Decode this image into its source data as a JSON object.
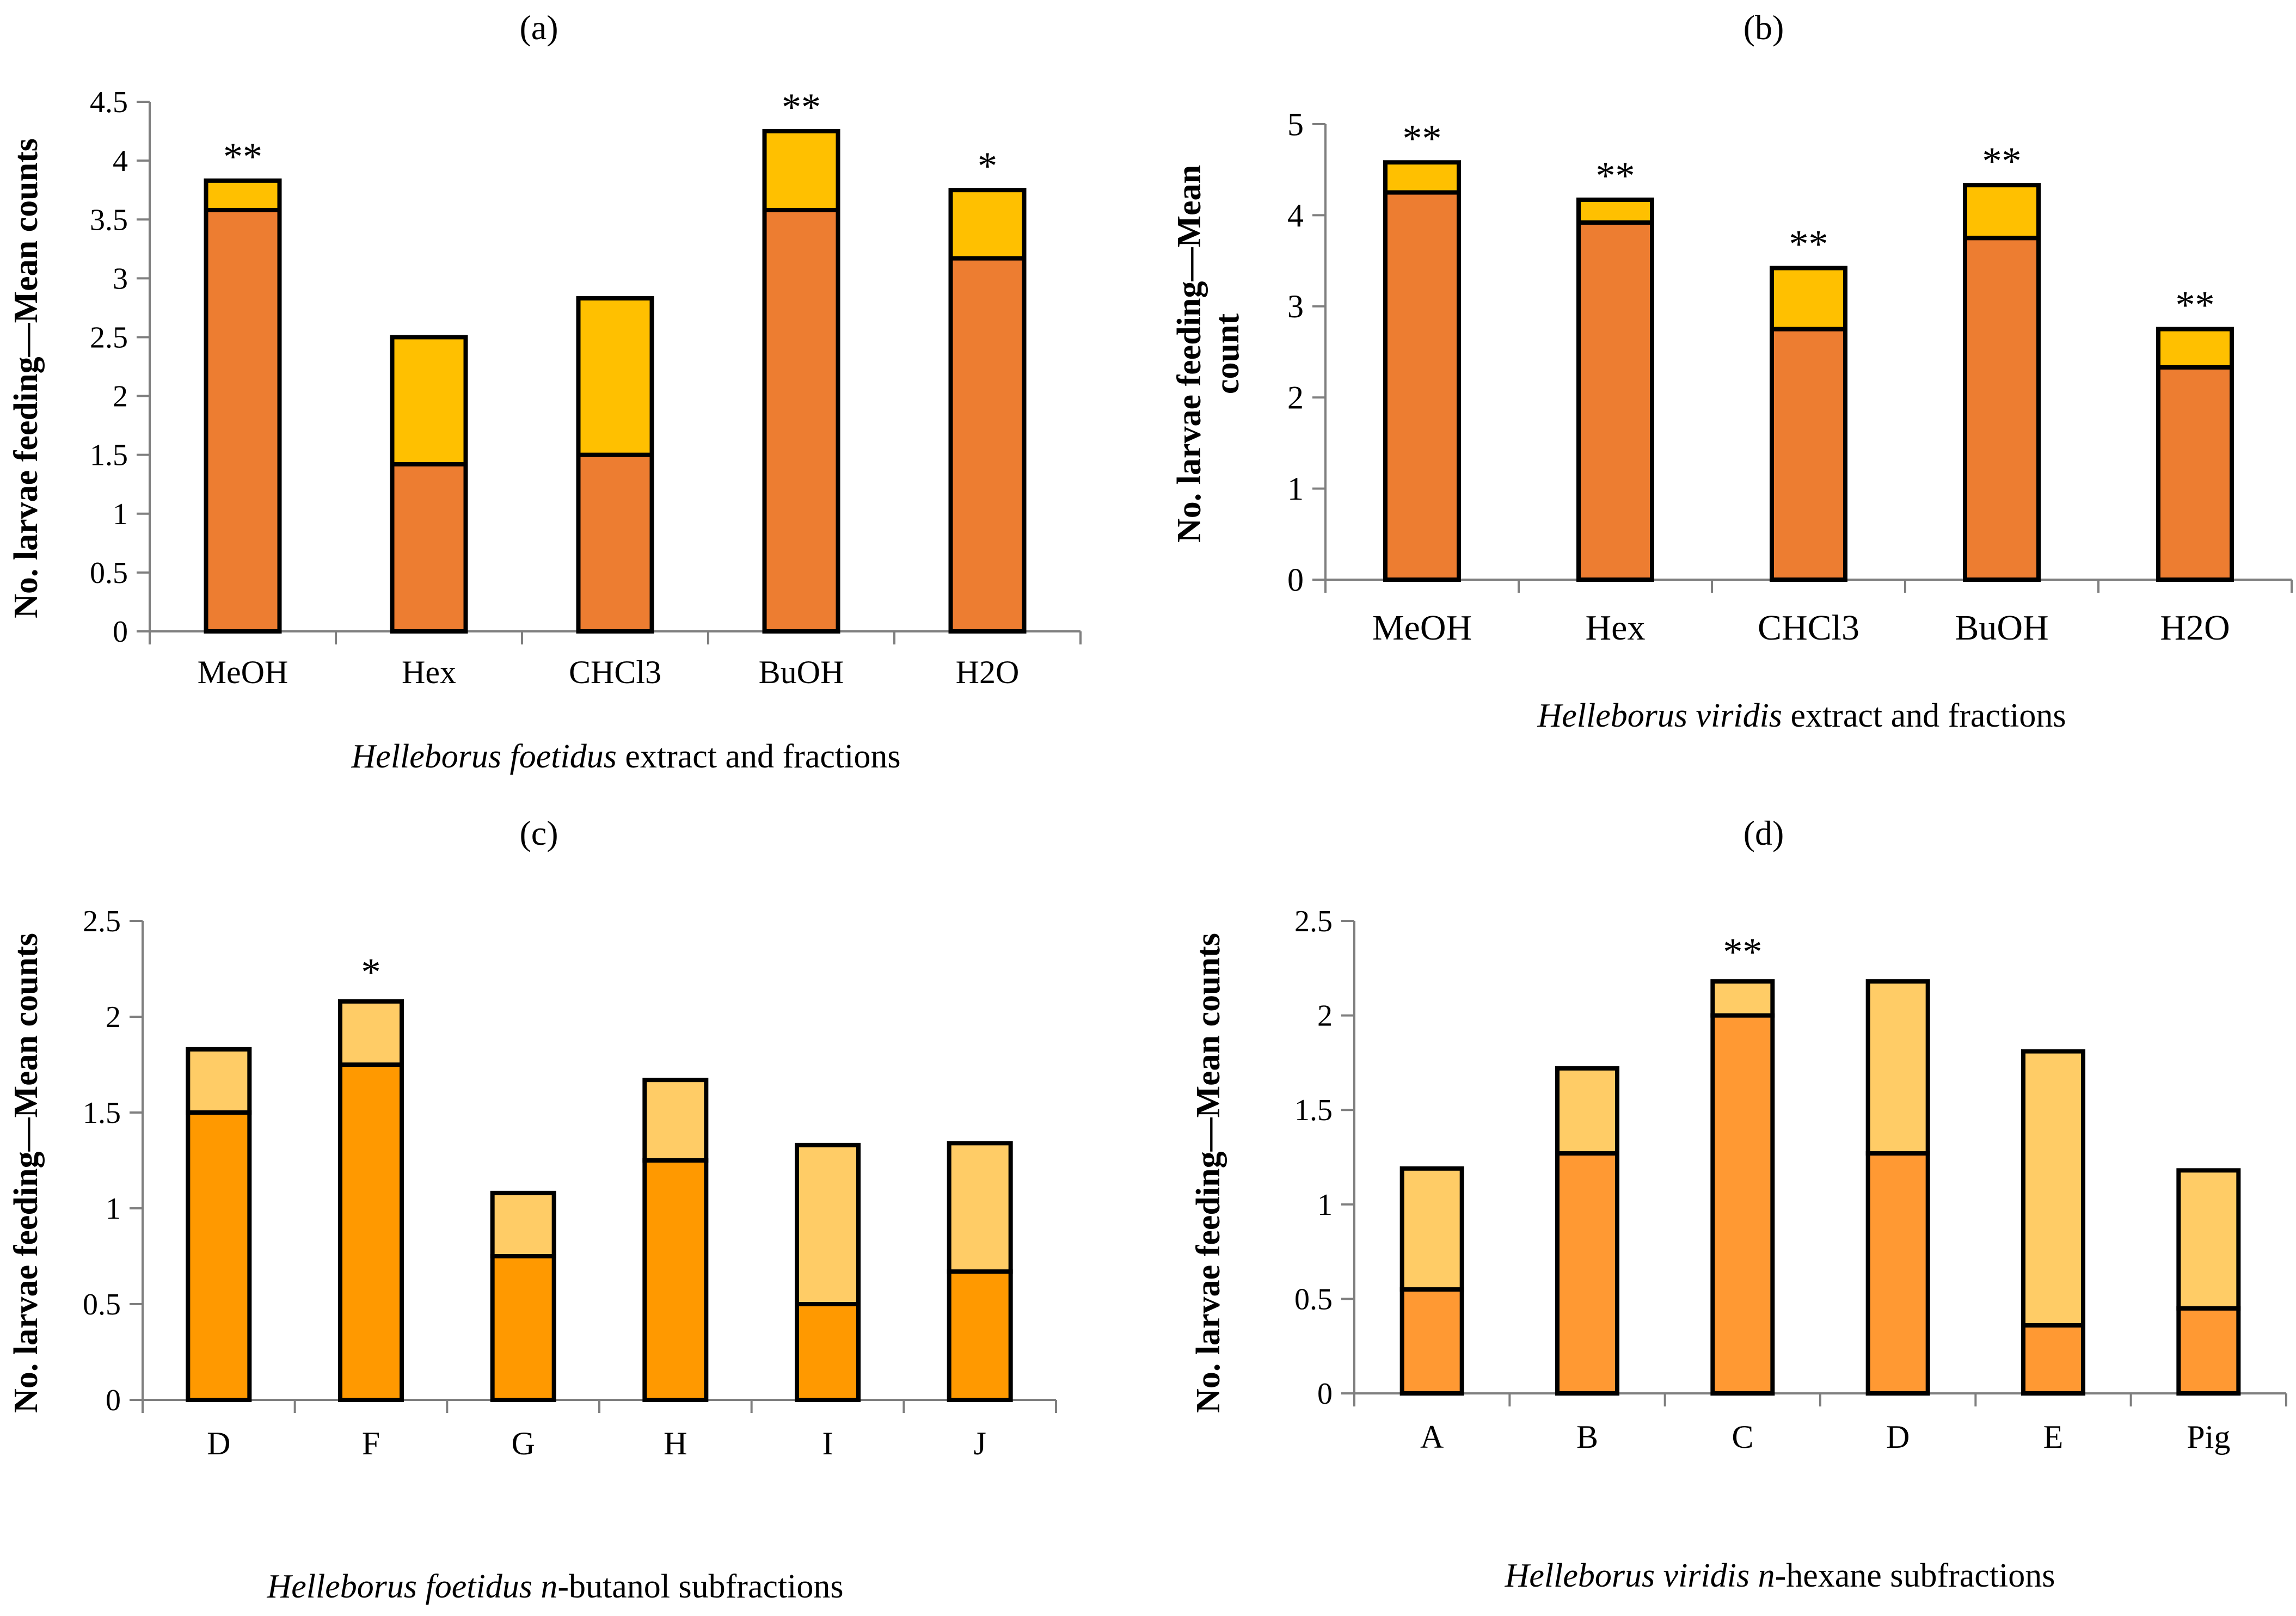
{
  "colors": {
    "ab_base": "#ED7D31",
    "ab_top": "#FFC000",
    "cd_base": "#FF9900",
    "cd_top": "#FFCC66",
    "d_base": "#FF9933",
    "axis": "#7F7F7F",
    "outline": "#000000"
  },
  "chart_data": [
    {
      "type": "bar",
      "stacked": true,
      "panel": "(a)",
      "ylabel": "No. larvae feeding—Mean counts",
      "caption_italic": "Helleborus foetidus",
      "caption_rest": " extract and fractions",
      "categories": [
        "MeOH",
        "Hex",
        "CHCl3",
        "BuOH",
        "H2O"
      ],
      "series": [
        {
          "name": "lower",
          "values": [
            3.58,
            1.42,
            1.5,
            3.58,
            3.17
          ]
        },
        {
          "name": "upper",
          "values": [
            0.25,
            1.08,
            1.33,
            0.67,
            0.58
          ]
        }
      ],
      "significance": [
        "**",
        "",
        "",
        "**",
        "*"
      ],
      "yticks": [
        "0",
        "0.5",
        "1",
        "1.5",
        "2",
        "2.5",
        "3",
        "3.5",
        "4",
        "4.5"
      ],
      "ylim": [
        0,
        4.5
      ]
    },
    {
      "type": "bar",
      "stacked": true,
      "panel": "(b)",
      "ylabel_line1": "No. larvae feeding—Mean",
      "ylabel_line2": "count",
      "caption_italic": "Helleborus viridis",
      "caption_rest": " extract and fractions",
      "categories": [
        "MeOH",
        "Hex",
        "CHCl3",
        "BuOH",
        "H2O"
      ],
      "series": [
        {
          "name": "lower",
          "values": [
            4.25,
            3.92,
            2.75,
            3.75,
            2.33
          ]
        },
        {
          "name": "upper",
          "values": [
            0.33,
            0.25,
            0.67,
            0.58,
            0.42
          ]
        }
      ],
      "significance": [
        "**",
        "**",
        "**",
        "**",
        "**"
      ],
      "yticks": [
        "0",
        "1",
        "2",
        "3",
        "4",
        "5"
      ],
      "ylim": [
        0,
        5
      ]
    },
    {
      "type": "bar",
      "stacked": true,
      "panel": "(c)",
      "ylabel": "No. larvae feeding—Mean counts",
      "caption_italic": "Helleborus foetidus n",
      "caption_rest": "-butanol subfractions",
      "categories": [
        "D",
        "F",
        "G",
        "H",
        "I",
        "J"
      ],
      "series": [
        {
          "name": "lower",
          "values": [
            1.5,
            1.75,
            0.75,
            1.25,
            0.5,
            0.67
          ]
        },
        {
          "name": "upper",
          "values": [
            0.33,
            0.33,
            0.33,
            0.42,
            0.83,
            0.67
          ]
        }
      ],
      "significance": [
        "",
        "*",
        "",
        "",
        "",
        ""
      ],
      "yticks": [
        "0",
        "0.5",
        "1",
        "1.5",
        "2",
        "2.5"
      ],
      "ylim": [
        0,
        2.5
      ]
    },
    {
      "type": "bar",
      "stacked": true,
      "panel": "(d)",
      "ylabel": "No. larvae feeding—Mean counts",
      "caption_italic": "Helleborus viridis n",
      "caption_rest": "-hexane subfractions",
      "categories": [
        "A",
        "B",
        "C",
        "D",
        "E",
        "Pig"
      ],
      "series": [
        {
          "name": "lower",
          "values": [
            0.55,
            1.27,
            2.0,
            1.27,
            0.36,
            0.45
          ]
        },
        {
          "name": "upper",
          "values": [
            0.64,
            0.45,
            0.18,
            0.91,
            1.45,
            0.73
          ]
        }
      ],
      "significance": [
        "",
        "",
        "**",
        "",
        "",
        ""
      ],
      "yticks": [
        "0",
        "0.5",
        "1",
        "1.5",
        "2",
        "2.5"
      ],
      "ylim": [
        0,
        2.5
      ]
    }
  ]
}
